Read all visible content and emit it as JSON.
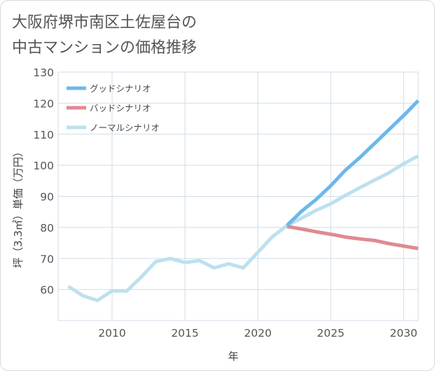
{
  "chart_data": {
    "type": "line",
    "title": [
      "大阪府堺市南区土佐屋台の",
      "中古マンションの価格推移"
    ],
    "xlabel": "年",
    "ylabel": "坪（3.3㎡）単価（万円）",
    "xlim": [
      2006.3,
      2031
    ],
    "ylim": [
      50,
      130
    ],
    "x_ticks": [
      2010,
      2015,
      2020,
      2025,
      2030
    ],
    "y_ticks": [
      60,
      70,
      80,
      90,
      100,
      110,
      120,
      130
    ],
    "grid": true,
    "legend_position": "top-left",
    "series": [
      {
        "name": "グッドシナリオ",
        "color": "#6bb8ea",
        "x": [
          2022,
          2023,
          2024,
          2025,
          2026,
          2027,
          2028,
          2029,
          2030,
          2031
        ],
        "values": [
          80.6,
          85.2,
          89.0,
          93.4,
          98.4,
          102.5,
          107.0,
          111.5,
          116.0,
          120.8
        ]
      },
      {
        "name": "バッドシナリオ",
        "color": "#df8a92",
        "x": [
          2022,
          2023,
          2024,
          2025,
          2026,
          2027,
          2028,
          2029,
          2030,
          2031
        ],
        "values": [
          80.3,
          79.5,
          78.6,
          77.8,
          76.9,
          76.3,
          75.8,
          74.8,
          74.0,
          73.2
        ]
      },
      {
        "name": "ノーマルシナリオ",
        "color": "#bde0ef",
        "x": [
          2007,
          2008,
          2009,
          2010,
          2011,
          2012,
          2013,
          2014,
          2015,
          2016,
          2017,
          2018,
          2019,
          2020,
          2021,
          2022,
          2023,
          2024,
          2025,
          2026,
          2027,
          2028,
          2029,
          2030,
          2031
        ],
        "values": [
          61.0,
          58.0,
          56.5,
          59.6,
          59.5,
          64.0,
          69.0,
          70.0,
          68.7,
          69.3,
          67.0,
          68.3,
          67.0,
          72.0,
          77.0,
          80.6,
          83.0,
          85.5,
          87.6,
          90.3,
          92.8,
          95.2,
          97.6,
          100.5,
          103.0
        ]
      }
    ]
  }
}
